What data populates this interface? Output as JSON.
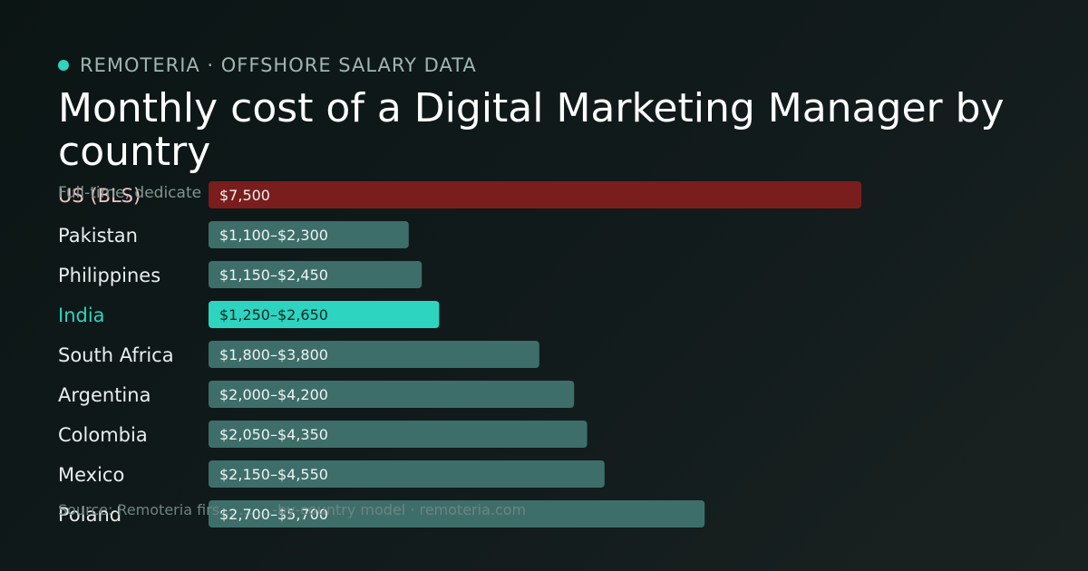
{
  "brand": {
    "name": "REMOTERIA · OFFSHORE SALARY DATA"
  },
  "title": "Monthly cost of a Digital Marketing Manager by country",
  "subtitle": "Full-time, dedicate",
  "footer": {
    "source": "Source: Remoteria firs… … …-by-country model · remoteria.com"
  },
  "colors": {
    "accent": "#2dd4bf",
    "baseline": "#7a1d1d",
    "bar": "#3e6e6a",
    "label": "#e9eeed",
    "accent_label": "#2dd4bf",
    "baseline_label": "#f2c4c4"
  },
  "chart_data": {
    "type": "bar",
    "orientation": "horizontal",
    "unit": "USD per month",
    "xlim": [
      0,
      7500
    ],
    "rows": [
      {
        "country": "US (BLS)",
        "low": 7500,
        "high": 7500,
        "label": "$7,500",
        "style": "baseline"
      },
      {
        "country": "Pakistan",
        "low": 1100,
        "high": 2300,
        "label": "$1,100–$2,300",
        "style": "normal"
      },
      {
        "country": "Philippines",
        "low": 1150,
        "high": 2450,
        "label": "$1,150–$2,450",
        "style": "normal"
      },
      {
        "country": "India",
        "low": 1250,
        "high": 2650,
        "label": "$1,250–$2,650",
        "style": "highlight"
      },
      {
        "country": "South Africa",
        "low": 1800,
        "high": 3800,
        "label": "$1,800–$3,800",
        "style": "normal"
      },
      {
        "country": "Argentina",
        "low": 2000,
        "high": 4200,
        "label": "$2,000–$4,200",
        "style": "normal"
      },
      {
        "country": "Colombia",
        "low": 2050,
        "high": 4350,
        "label": "$2,050–$4,350",
        "style": "normal"
      },
      {
        "country": "Mexico",
        "low": 2150,
        "high": 4550,
        "label": "$2,150–$4,550",
        "style": "normal"
      },
      {
        "country": "Poland",
        "low": 2700,
        "high": 5700,
        "label": "$2,700–$5,700",
        "style": "normal"
      }
    ]
  }
}
